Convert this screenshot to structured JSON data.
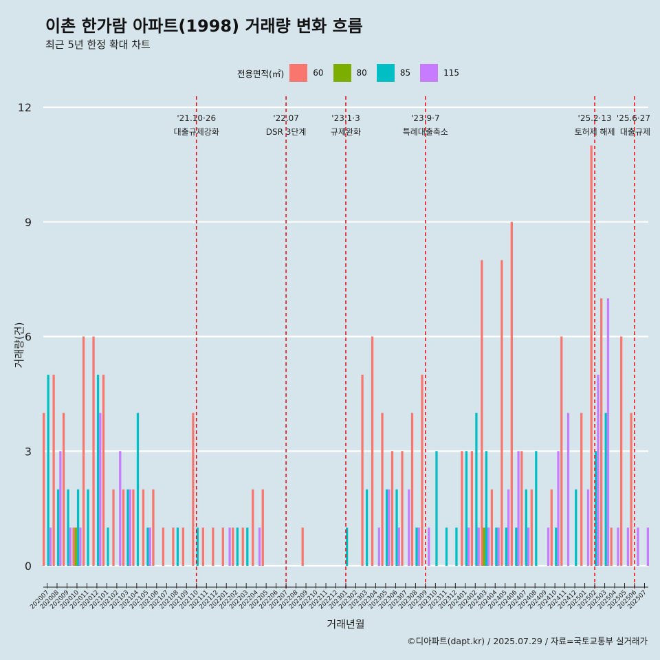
{
  "title": "이촌 한가람 아파트(1998) 거래량 변화 흐름",
  "subtitle": "최근 5년 한정 확대 차트",
  "caption": "©디아파트(dapt.kr) / 2025.07.29 / 자료=국토교통부 실거래가",
  "colors": {
    "background": "#d6e4ec",
    "grid": "#ffffff",
    "event_line": "#e8141c"
  },
  "chart_data": {
    "type": "bar",
    "title": "이촌 한가람 아파트(1998) 거래량 변화 흐름",
    "xlabel": "거래년월",
    "ylabel": "거래량(건)",
    "ylim": [
      0,
      12
    ],
    "yticks": [
      0,
      3,
      6,
      9,
      12
    ],
    "legend": {
      "title": "전용면적(㎡)",
      "position": "top"
    },
    "categories": [
      "202007",
      "202008",
      "202009",
      "202010",
      "202011",
      "202012",
      "202101",
      "202102",
      "202103",
      "202104",
      "202105",
      "202106",
      "202107",
      "202108",
      "202109",
      "202110",
      "202111",
      "202112",
      "202201",
      "202202",
      "202203",
      "202204",
      "202205",
      "202206",
      "202207",
      "202208",
      "202209",
      "202210",
      "202211",
      "202212",
      "202301",
      "202302",
      "202303",
      "202304",
      "202305",
      "202306",
      "202307",
      "202308",
      "202309",
      "202310",
      "202311",
      "202312",
      "202401",
      "202402",
      "202403",
      "202404",
      "202405",
      "202406",
      "202407",
      "202408",
      "202409",
      "202410",
      "202411",
      "202412",
      "202501",
      "202502",
      "202503",
      "202504",
      "202505",
      "202506",
      "202507"
    ],
    "series": [
      {
        "name": "60",
        "color": "#f8766d",
        "values": [
          4,
          5,
          4,
          1,
          6,
          6,
          5,
          2,
          2,
          2,
          2,
          2,
          1,
          1,
          1,
          4,
          1,
          1,
          1,
          1,
          1,
          2,
          2,
          0,
          0,
          0,
          1,
          0,
          0,
          0,
          0,
          0,
          5,
          6,
          4,
          3,
          3,
          4,
          5,
          0,
          0,
          0,
          3,
          3,
          8,
          2,
          8,
          9,
          3,
          2,
          0,
          2,
          6,
          0,
          4,
          11,
          7,
          1,
          6,
          4,
          0
        ]
      },
      {
        "name": "80",
        "color": "#7cae00",
        "values": [
          0,
          0,
          0,
          1,
          0,
          0,
          0,
          0,
          0,
          0,
          0,
          0,
          0,
          0,
          0,
          0,
          0,
          0,
          0,
          0,
          0,
          0,
          0,
          0,
          0,
          0,
          0,
          0,
          0,
          0,
          0,
          0,
          0,
          0,
          0,
          0,
          0,
          0,
          0,
          0,
          0,
          0,
          0,
          0,
          1,
          0,
          0,
          0,
          0,
          0,
          0,
          0,
          0,
          0,
          0,
          0,
          0,
          0,
          0,
          0,
          0
        ]
      },
      {
        "name": "85",
        "color": "#00bfc4",
        "values": [
          5,
          2,
          2,
          2,
          2,
          5,
          1,
          0,
          2,
          4,
          1,
          0,
          0,
          1,
          0,
          1,
          0,
          0,
          0,
          1,
          1,
          0,
          0,
          0,
          0,
          0,
          0,
          0,
          0,
          0,
          1,
          0,
          2,
          0,
          2,
          2,
          0,
          1,
          0,
          3,
          1,
          1,
          3,
          4,
          3,
          1,
          1,
          1,
          2,
          3,
          0,
          1,
          0,
          2,
          0,
          3,
          4,
          0,
          0,
          0,
          0
        ]
      },
      {
        "name": "115",
        "color": "#c77cff",
        "values": [
          1,
          3,
          1,
          1,
          0,
          4,
          0,
          3,
          2,
          0,
          1,
          0,
          0,
          0,
          0,
          0,
          0,
          0,
          1,
          0,
          0,
          1,
          0,
          0,
          0,
          0,
          0,
          0,
          0,
          0,
          0,
          0,
          0,
          1,
          2,
          1,
          2,
          1,
          1,
          0,
          0,
          0,
          1,
          1,
          1,
          1,
          2,
          3,
          1,
          0,
          1,
          3,
          4,
          0,
          2,
          5,
          7,
          1,
          1,
          1,
          1
        ]
      }
    ],
    "events": [
      {
        "date": "'21.10·26",
        "label": "대출규제강화",
        "x_index": 15
      },
      {
        "date": "'22.07",
        "label": "DSR 3단계",
        "x_index": 24
      },
      {
        "date": "'23.1·3",
        "label": "규제완화",
        "x_index": 30
      },
      {
        "date": "'23.9·7",
        "label": "특례대출축소",
        "x_index": 38
      },
      {
        "date": "'25.2·13",
        "label": "토허제 해제",
        "x_index": 55
      },
      {
        "date": "'25.6·27",
        "label": "대출규제",
        "x_index": 59
      }
    ]
  }
}
